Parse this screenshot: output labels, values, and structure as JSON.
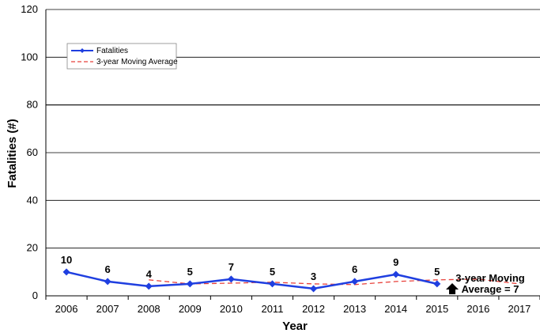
{
  "chart_data": {
    "type": "line",
    "title": "",
    "xlabel": "Year",
    "ylabel": "Fatalities (#)",
    "categories": [
      "2006",
      "2007",
      "2008",
      "2009",
      "2010",
      "2011",
      "2012",
      "2013",
      "2014",
      "2015",
      "2016",
      "2017"
    ],
    "ylim": [
      0,
      120
    ],
    "yticks": [
      0,
      20,
      40,
      60,
      80,
      100,
      120
    ],
    "grid": true,
    "legend_position": "top-left",
    "series": [
      {
        "name": "Fatalities",
        "style": "solid-diamond",
        "color": "#1f3fe0",
        "values": [
          10,
          6,
          4,
          5,
          7,
          5,
          3,
          6,
          9,
          5,
          null,
          null
        ],
        "data_labels": [
          "10",
          "6",
          "4",
          "5",
          "7",
          "5",
          "3",
          "6",
          "9",
          "5",
          "",
          ""
        ]
      },
      {
        "name": "3-year Moving Average",
        "style": "dashed",
        "color": "#e8403a",
        "values": [
          null,
          null,
          6.7,
          5.0,
          5.3,
          5.7,
          5.0,
          4.7,
          6.0,
          6.7,
          7.0,
          5.0
        ]
      }
    ],
    "annotation": {
      "line1": "3-year Moving",
      "line2": "Average = 7"
    }
  }
}
